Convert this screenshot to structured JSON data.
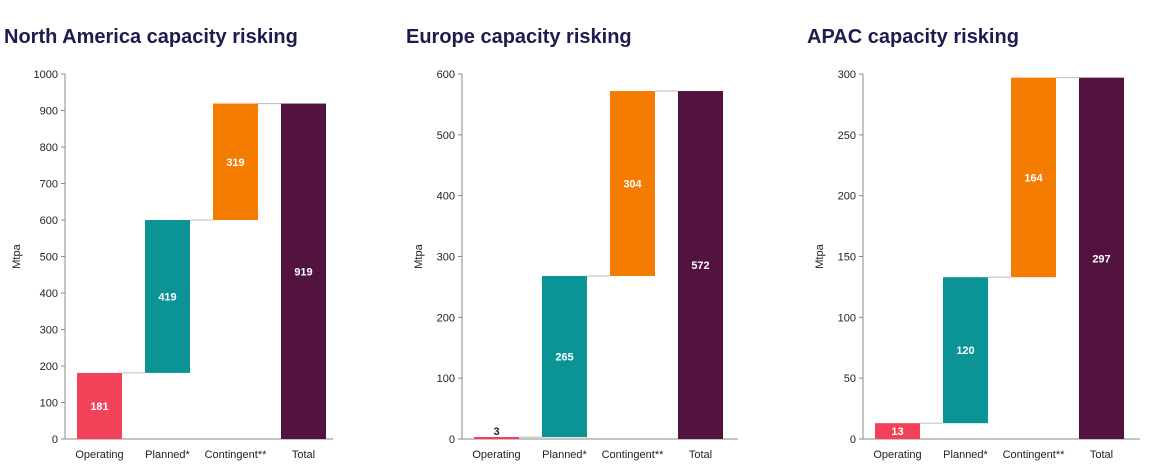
{
  "chart_data": [
    {
      "type": "bar",
      "title": "North America capacity risking",
      "ylabel": "Mtpa",
      "ylim": [
        0,
        1000
      ],
      "yticks": [
        "0",
        "100",
        "200",
        "300",
        "400",
        "500",
        "600",
        "700",
        "800",
        "900",
        "1000"
      ],
      "categories": [
        "Operating",
        "Planned*",
        "Contingent**",
        "Total"
      ],
      "values": [
        181,
        419,
        319,
        919
      ],
      "value_labels": [
        "181",
        "419",
        "319",
        "919"
      ],
      "colors": [
        "#f2425a",
        "#0b9396",
        "#f47c00",
        "#52143e"
      ],
      "label_colors": [
        "#ffffff",
        "#ffffff",
        "#ffffff",
        "#ffffff"
      ]
    },
    {
      "type": "bar",
      "title": "Europe capacity risking",
      "ylabel": "Mtpa",
      "ylim": [
        0,
        600
      ],
      "yticks": [
        "0",
        "100",
        "200",
        "300",
        "400",
        "500",
        "600"
      ],
      "categories": [
        "Operating",
        "Planned*",
        "Contingent**",
        "Total"
      ],
      "values": [
        3,
        265,
        304,
        572
      ],
      "value_labels": [
        "3",
        "265",
        "304",
        "572"
      ],
      "colors": [
        "#f2425a",
        "#0b9396",
        "#f47c00",
        "#52143e"
      ],
      "label_colors": [
        "#222222",
        "#ffffff",
        "#ffffff",
        "#ffffff"
      ]
    },
    {
      "type": "bar",
      "title": "APAC capacity risking",
      "ylabel": "Mtpa",
      "ylim": [
        0,
        300
      ],
      "yticks": [
        "0",
        "50",
        "100",
        "150",
        "200",
        "250",
        "300"
      ],
      "categories": [
        "Operating",
        "Planned*",
        "Contingent**",
        "Total"
      ],
      "values": [
        13,
        120,
        164,
        297
      ],
      "value_labels": [
        "13",
        "120",
        "164",
        "297"
      ],
      "colors": [
        "#f2425a",
        "#0b9396",
        "#f47c00",
        "#52143e"
      ],
      "label_colors": [
        "#ffffff",
        "#ffffff",
        "#ffffff",
        "#ffffff"
      ]
    }
  ]
}
